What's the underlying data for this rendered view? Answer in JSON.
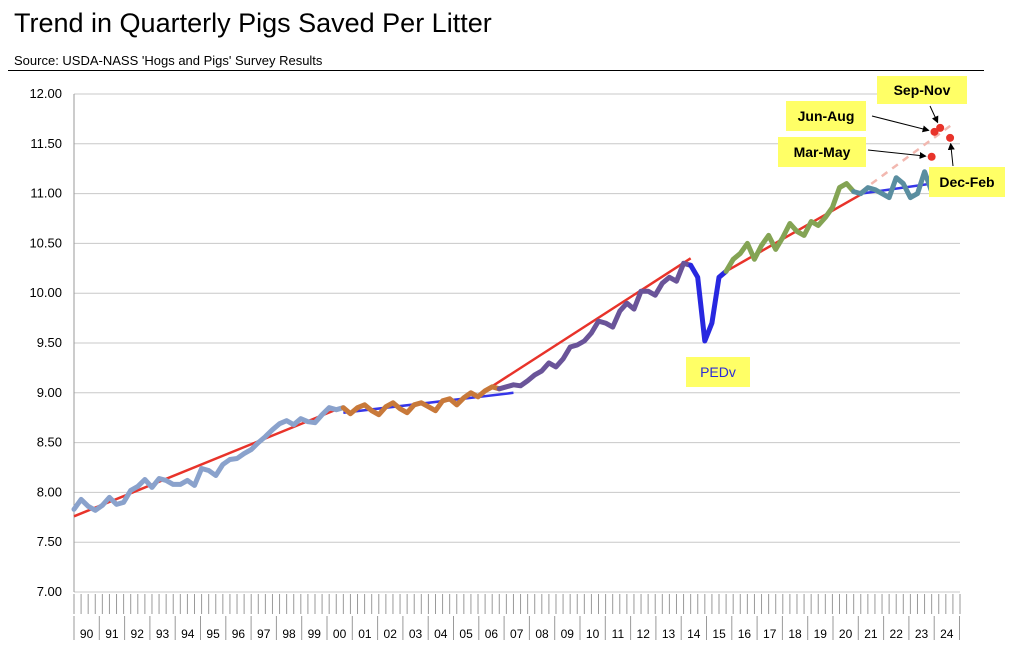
{
  "chart_data": {
    "type": "line",
    "title": "Trend in Quarterly Pigs Saved Per Litter",
    "subtitle": "Source: USDA-NASS 'Hogs and Pigs' Survey Results",
    "xlabel": "",
    "ylabel": "",
    "ylim": [
      7.0,
      12.0
    ],
    "yticks": [
      "7.00",
      "7.50",
      "8.00",
      "8.50",
      "9.00",
      "9.50",
      "10.00",
      "10.50",
      "11.00",
      "11.50",
      "12.00"
    ],
    "categories": [
      "90",
      "91",
      "92",
      "93",
      "94",
      "95",
      "96",
      "97",
      "98",
      "99",
      "00",
      "01",
      "02",
      "03",
      "04",
      "05",
      "06",
      "07",
      "08",
      "09",
      "10",
      "11",
      "12",
      "13",
      "14",
      "15",
      "16",
      "17",
      "18",
      "19",
      "20",
      "21",
      "22",
      "23",
      "24"
    ],
    "grid": "horizontal",
    "series": [
      {
        "color": "#8aa2cc",
        "values": [
          7.83,
          7.93,
          7.86,
          7.82,
          7.87,
          7.95,
          7.88,
          7.9,
          8.02,
          8.06,
          8.13,
          8.05,
          8.14,
          8.12,
          8.08,
          8.08,
          8.12,
          8.07,
          8.24,
          8.22,
          8.17,
          8.28,
          8.33,
          8.34,
          8.39,
          8.43,
          8.5,
          8.56,
          8.63,
          8.69,
          8.72,
          8.68,
          8.74,
          8.71,
          8.7,
          8.78,
          8.85,
          8.83,
          8.85
        ],
        "x": [
          1990.0,
          1990.25,
          1990.5,
          1990.75,
          1991.0,
          1991.25,
          1991.5,
          1991.75,
          1992.0,
          1992.25,
          1992.5,
          1992.75,
          1993.0,
          1993.25,
          1993.5,
          1993.75,
          1994.0,
          1994.25,
          1994.5,
          1994.75,
          1995.0,
          1995.25,
          1995.5,
          1995.75,
          1996.0,
          1996.25,
          1996.5,
          1996.75,
          1997.0,
          1997.25,
          1997.5,
          1997.75,
          1998.0,
          1998.25,
          1998.5,
          1998.75,
          1999.0,
          1999.25,
          1999.5
        ]
      },
      {
        "color": "#c8793a",
        "values": [
          8.85,
          8.79,
          8.85,
          8.88,
          8.82,
          8.78,
          8.86,
          8.9,
          8.84,
          8.8,
          8.88,
          8.9,
          8.86,
          8.82,
          8.92,
          8.94,
          8.88,
          8.95,
          9.0,
          8.96,
          9.02,
          9.06,
          9.04
        ],
        "x": [
          1999.5,
          1999.75,
          2000.0,
          2000.25,
          2000.5,
          2000.75,
          2001.0,
          2001.25,
          2001.5,
          2001.75,
          2002.0,
          2002.25,
          2002.5,
          2002.75,
          2003.0,
          2003.25,
          2003.5,
          2003.75,
          2004.0,
          2004.25,
          2004.5,
          2004.75,
          2005.0
        ]
      },
      {
        "color": "#6a5499",
        "values": [
          9.04,
          9.06,
          9.08,
          9.07,
          9.12,
          9.18,
          9.22,
          9.3,
          9.26,
          9.34,
          9.46,
          9.48,
          9.52,
          9.6,
          9.72,
          9.7,
          9.66,
          9.82,
          9.9,
          9.84,
          10.02,
          10.02,
          9.98,
          10.1,
          10.16,
          10.12,
          10.3,
          10.28
        ],
        "x": [
          2005.0,
          2005.25,
          2005.5,
          2005.75,
          2006.0,
          2006.25,
          2006.5,
          2006.75,
          2007.0,
          2007.25,
          2007.5,
          2007.75,
          2008.0,
          2008.25,
          2008.5,
          2008.75,
          2009.0,
          2009.25,
          2009.5,
          2009.75,
          2010.0,
          2010.25,
          2010.5,
          2010.75,
          2011.0,
          2011.25,
          2011.5,
          2011.75
        ]
      },
      {
        "color": "#2828e0",
        "values": [
          10.28,
          10.16,
          9.52,
          9.7,
          10.16,
          10.22
        ],
        "x": [
          2011.75,
          2012.0,
          2012.25,
          2012.5,
          2012.75,
          2013.0
        ]
      },
      {
        "color": "#84a454",
        "values": [
          10.22,
          10.34,
          10.4,
          10.5,
          10.34,
          10.48,
          10.58,
          10.44,
          10.56,
          10.7,
          10.62,
          10.58,
          10.72,
          10.68,
          10.76,
          10.86,
          11.06,
          11.1,
          11.02
        ],
        "x": [
          2013.0,
          2013.25,
          2013.5,
          2013.75,
          2014.0,
          2014.25,
          2014.5,
          2014.75,
          2015.0,
          2015.25,
          2015.5,
          2015.75,
          2016.0,
          2016.25,
          2016.5,
          2016.75,
          2017.0,
          2017.25,
          2017.5
        ]
      },
      {
        "color": "#5a8ea0",
        "values": [
          11.02,
          11.0,
          11.06,
          11.04,
          11.0,
          10.96,
          11.16,
          11.1,
          10.96,
          11.0,
          11.22,
          11.02
        ],
        "x": [
          2017.5,
          2017.75,
          2018.0,
          2018.25,
          2018.5,
          2018.75,
          2019.0,
          2019.25,
          2019.5,
          2019.75,
          2020.0,
          2020.25
        ]
      }
    ],
    "trendlines": [
      {
        "color": "#e8332a",
        "from": [
          1990.0,
          7.76
        ],
        "to": [
          1999.5,
          8.86
        ]
      },
      {
        "color": "#3636e8",
        "from": [
          1999.5,
          8.8
        ],
        "to": [
          2005.5,
          9.0
        ]
      },
      {
        "color": "#e8332a",
        "from": [
          2004.5,
          9.02
        ],
        "to": [
          2011.75,
          10.35
        ]
      },
      {
        "color": "#e8332a",
        "from": [
          2013.0,
          10.22
        ],
        "to": [
          2017.75,
          10.99
        ]
      },
      {
        "color": "#3636e8",
        "from": [
          2017.75,
          11.0
        ],
        "to": [
          2020.5,
          11.11
        ]
      },
      {
        "color": "#f2b8b0",
        "from": [
          2017.75,
          11.02
        ],
        "to": [
          2021.0,
          11.7
        ],
        "dashed": true
      }
    ],
    "highlight_points": [
      {
        "label": "Mar-May",
        "x": 2020.25,
        "value": 11.37
      },
      {
        "label": "Jun-Aug",
        "x": 2020.35,
        "value": 11.62
      },
      {
        "label": "Sep-Nov",
        "x": 2020.55,
        "value": 11.66
      },
      {
        "label": "Dec-Feb",
        "x": 2020.9,
        "value": 11.56
      }
    ],
    "annotations": [
      {
        "label": "PEDv"
      },
      {
        "label": "Jun-Aug"
      },
      {
        "label": "Sep-Nov"
      },
      {
        "label": "Mar-May"
      },
      {
        "label": "Dec-Feb"
      }
    ],
    "colors": {
      "grid": "#c8c8c8",
      "callout": "#ffff66",
      "point": "#e8332a"
    }
  }
}
